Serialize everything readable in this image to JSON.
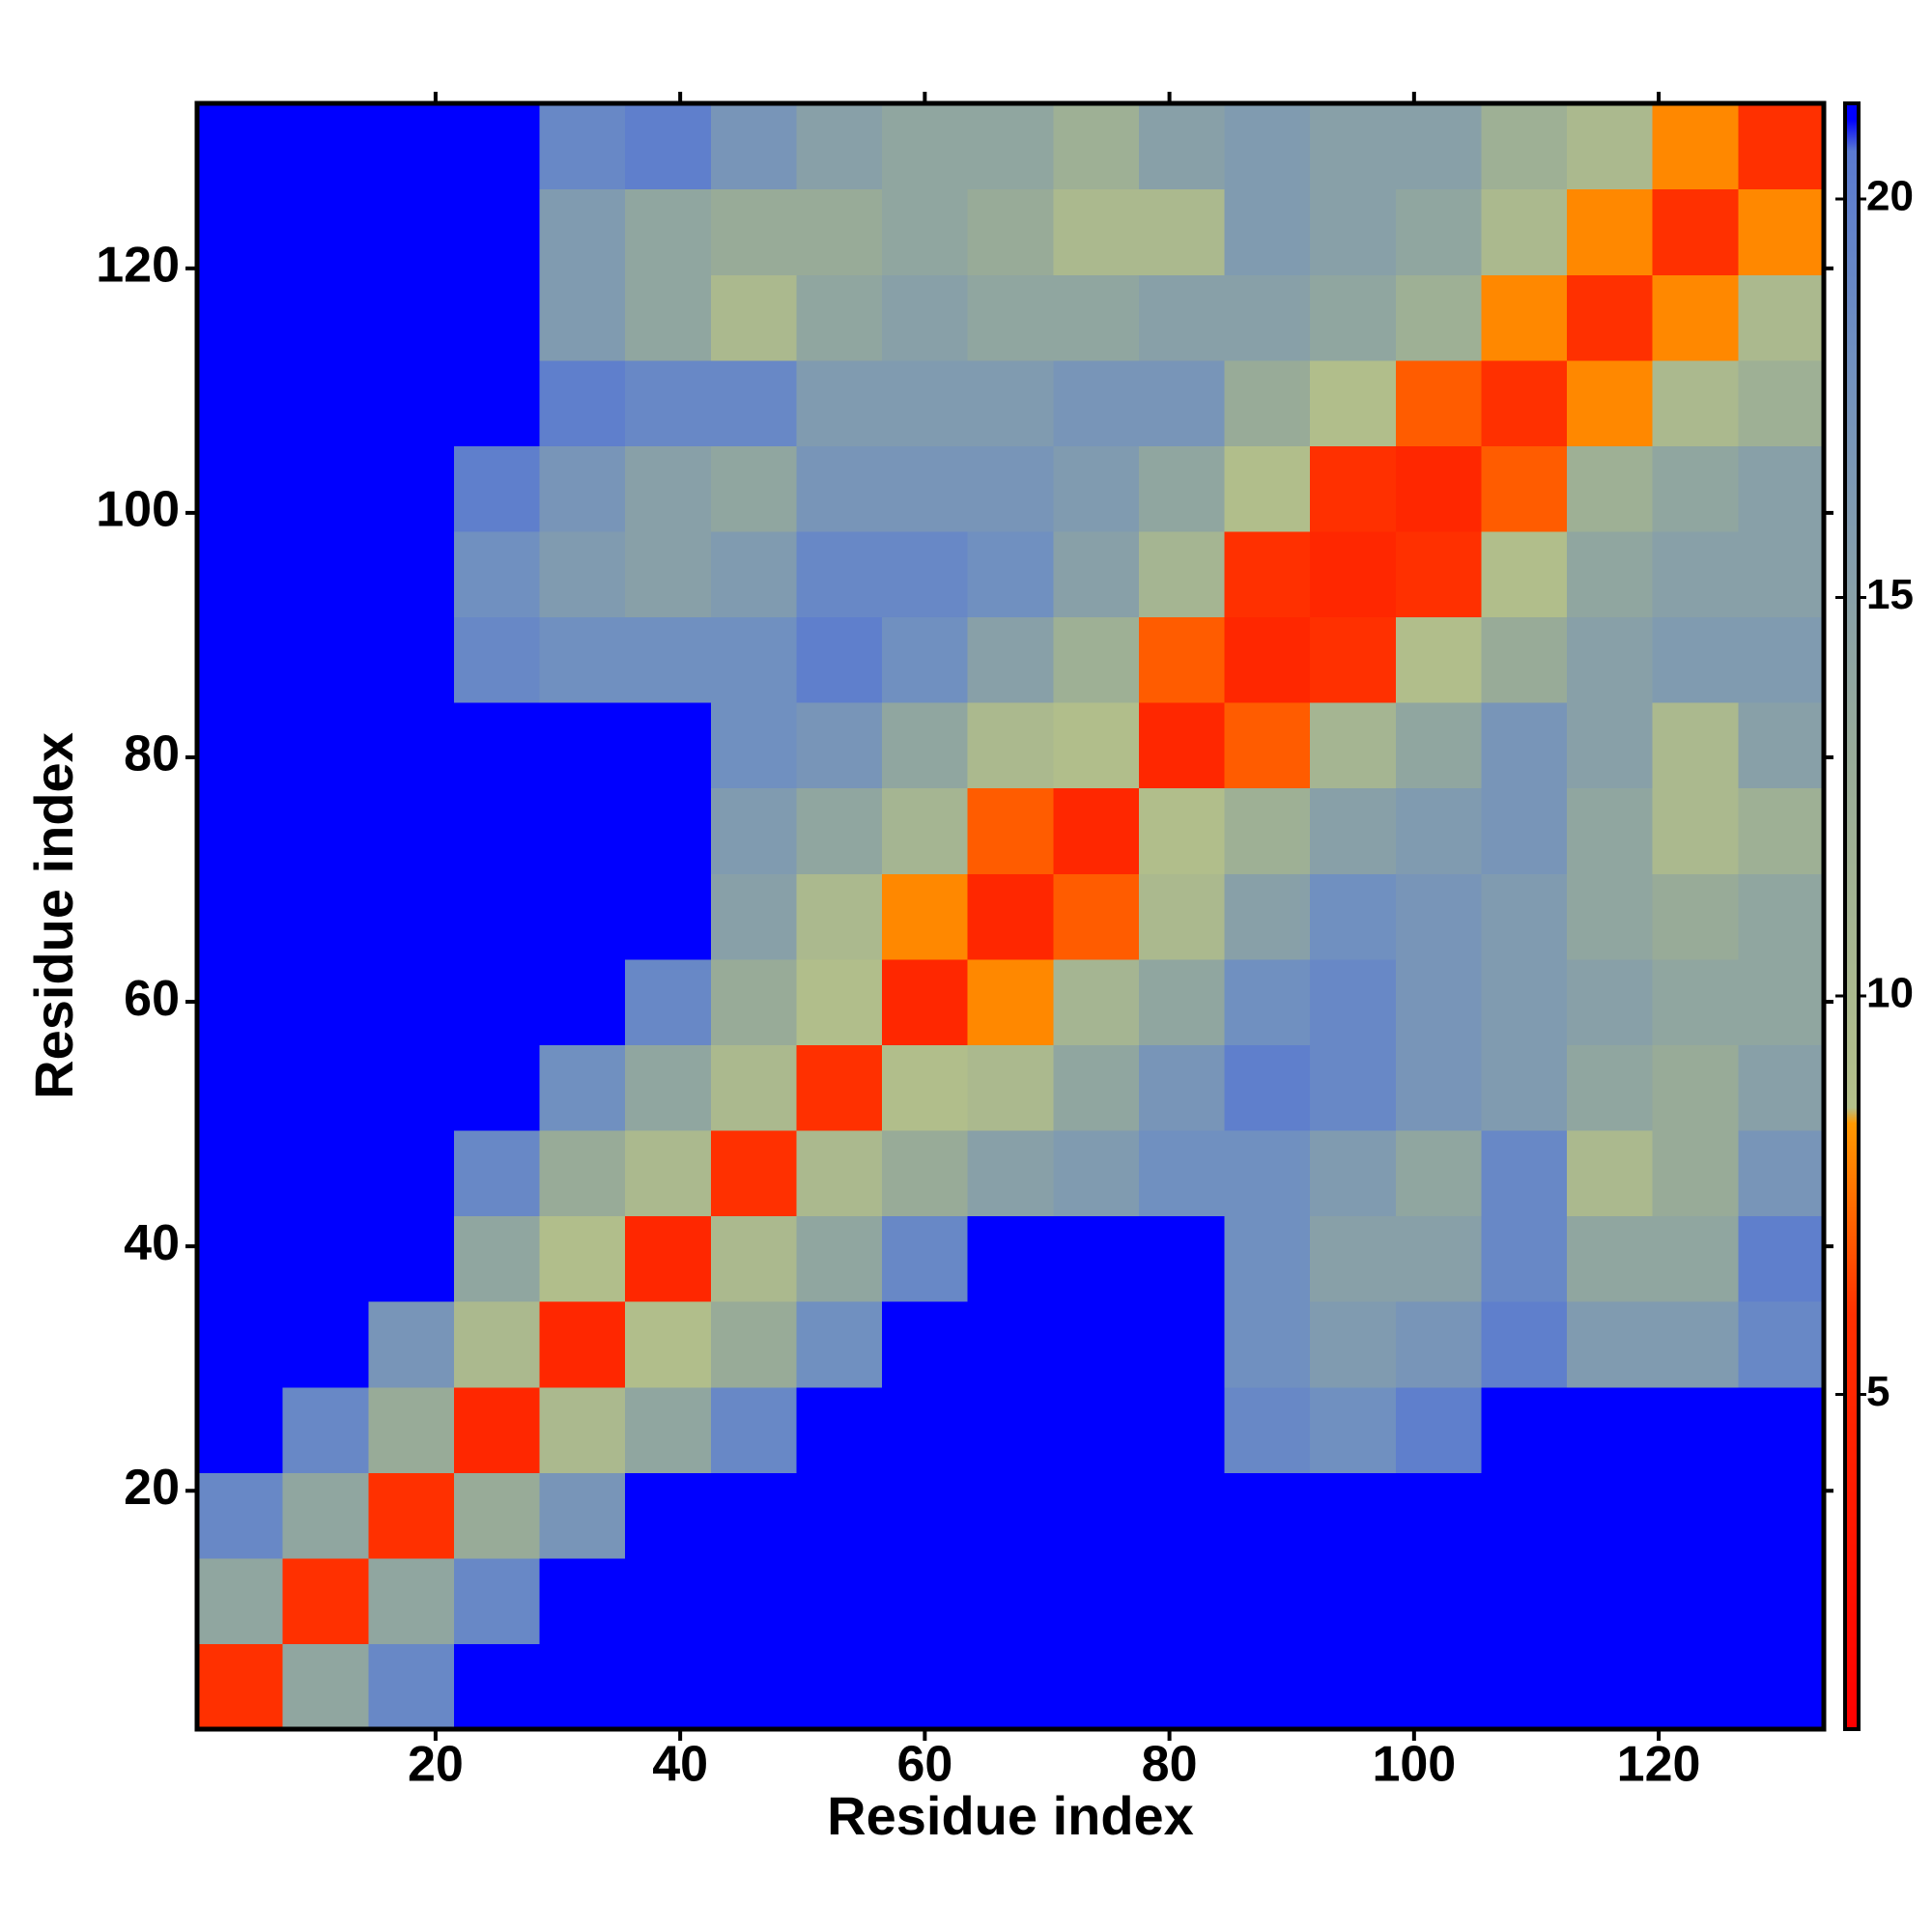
{
  "chart_data": {
    "type": "heatmap",
    "x_label": "Residue index",
    "y_label": "Residue index",
    "xlim": [
      0.5,
      133.5
    ],
    "ylim": [
      0.5,
      133.5
    ],
    "xticks": [
      20,
      40,
      60,
      80,
      100,
      120
    ],
    "yticks": [
      20,
      40,
      60,
      80,
      100,
      120
    ],
    "x_bins": [
      0.5,
      7.5,
      14.5,
      21.5,
      28.5,
      35.5,
      42.5,
      49.5,
      56.5,
      63.5,
      70.5,
      77.5,
      84.5,
      91.5,
      98.5,
      105.5,
      112.5,
      119.5,
      126.5,
      133.5
    ],
    "y_bins": [
      0.5,
      7.5,
      14.5,
      21.5,
      28.5,
      35.5,
      42.5,
      49.5,
      56.5,
      63.5,
      70.5,
      77.5,
      84.5,
      91.5,
      98.5,
      105.5,
      112.5,
      119.5,
      126.5,
      133.5
    ],
    "z": [
      [
        6,
        14,
        19,
        21,
        21,
        21,
        21,
        21,
        21,
        21,
        21,
        21,
        21,
        21,
        21,
        21,
        21,
        21,
        21
      ],
      [
        14,
        6,
        14,
        19,
        21,
        21,
        21,
        21,
        21,
        21,
        21,
        21,
        21,
        21,
        21,
        21,
        21,
        21,
        21
      ],
      [
        19,
        14,
        6,
        13,
        17,
        21,
        21,
        21,
        21,
        21,
        21,
        21,
        21,
        21,
        21,
        21,
        21,
        21,
        21
      ],
      [
        21,
        19,
        13,
        5,
        10,
        14,
        19,
        21,
        21,
        21,
        21,
        21,
        19,
        18,
        20,
        21,
        21,
        21,
        21
      ],
      [
        21,
        21,
        17,
        10,
        5,
        9,
        13,
        18,
        21,
        21,
        21,
        21,
        18,
        16,
        17,
        20,
        16,
        16,
        19
      ],
      [
        21,
        21,
        21,
        14,
        9,
        5,
        10,
        14,
        19,
        21,
        21,
        21,
        18,
        15,
        15,
        19,
        14,
        14,
        20
      ],
      [
        21,
        21,
        21,
        19,
        13,
        10,
        6,
        10,
        13,
        15,
        16,
        18,
        18,
        16,
        14,
        19,
        10,
        13,
        17
      ],
      [
        21,
        21,
        21,
        21,
        18,
        14,
        10,
        6,
        9,
        10,
        14,
        17,
        20,
        19,
        17,
        16,
        14,
        13,
        15
      ],
      [
        21,
        21,
        21,
        21,
        21,
        19,
        13,
        9,
        5,
        8,
        11,
        14,
        18,
        19,
        17,
        16,
        15,
        14,
        14
      ],
      [
        21,
        21,
        21,
        21,
        21,
        21,
        15,
        10,
        8,
        5,
        7,
        10,
        15,
        18,
        17,
        16,
        14,
        13,
        14
      ],
      [
        21,
        21,
        21,
        21,
        21,
        21,
        16,
        14,
        11,
        7,
        5,
        9,
        12,
        15,
        16,
        17,
        14,
        10,
        12
      ],
      [
        21,
        21,
        21,
        21,
        21,
        21,
        18,
        17,
        14,
        10,
        9,
        5,
        7,
        11,
        14,
        17,
        15,
        10,
        15
      ],
      [
        21,
        21,
        21,
        19,
        18,
        18,
        18,
        20,
        18,
        15,
        12,
        7,
        5,
        6,
        9,
        13,
        15,
        16,
        16
      ],
      [
        21,
        21,
        21,
        18,
        16,
        15,
        16,
        19,
        19,
        18,
        15,
        11,
        6,
        5,
        6,
        9,
        14,
        15,
        15
      ],
      [
        21,
        21,
        21,
        20,
        17,
        15,
        14,
        17,
        17,
        17,
        16,
        14,
        9,
        6,
        5,
        7,
        12,
        14,
        15
      ],
      [
        21,
        21,
        21,
        21,
        20,
        19,
        19,
        16,
        16,
        16,
        17,
        17,
        13,
        9,
        7,
        6,
        8,
        10,
        12
      ],
      [
        21,
        21,
        21,
        21,
        16,
        14,
        10,
        14,
        15,
        14,
        14,
        15,
        15,
        14,
        12,
        8,
        6,
        8,
        10
      ],
      [
        21,
        21,
        21,
        21,
        16,
        14,
        13,
        13,
        14,
        13,
        10,
        10,
        16,
        15,
        14,
        10,
        8,
        6,
        8
      ],
      [
        21,
        21,
        21,
        21,
        19,
        20,
        17,
        15,
        14,
        14,
        12,
        15,
        16,
        15,
        15,
        12,
        10,
        8,
        6
      ]
    ],
    "zlim": [
      0.8,
      21.2
    ],
    "zticks": [
      5,
      10,
      15,
      20
    ],
    "colorscale": [
      [
        0.8,
        "#ff0000"
      ],
      [
        6,
        "#ff3000"
      ],
      [
        8.4,
        "#ff9900"
      ],
      [
        8.6,
        "#b4c08a"
      ],
      [
        13,
        "#98ab98"
      ],
      [
        18,
        "#7090c0"
      ],
      [
        20.6,
        "#5a7ad0"
      ],
      [
        21,
        "#0000ff"
      ],
      [
        21.2,
        "#0000ff"
      ]
    ]
  }
}
